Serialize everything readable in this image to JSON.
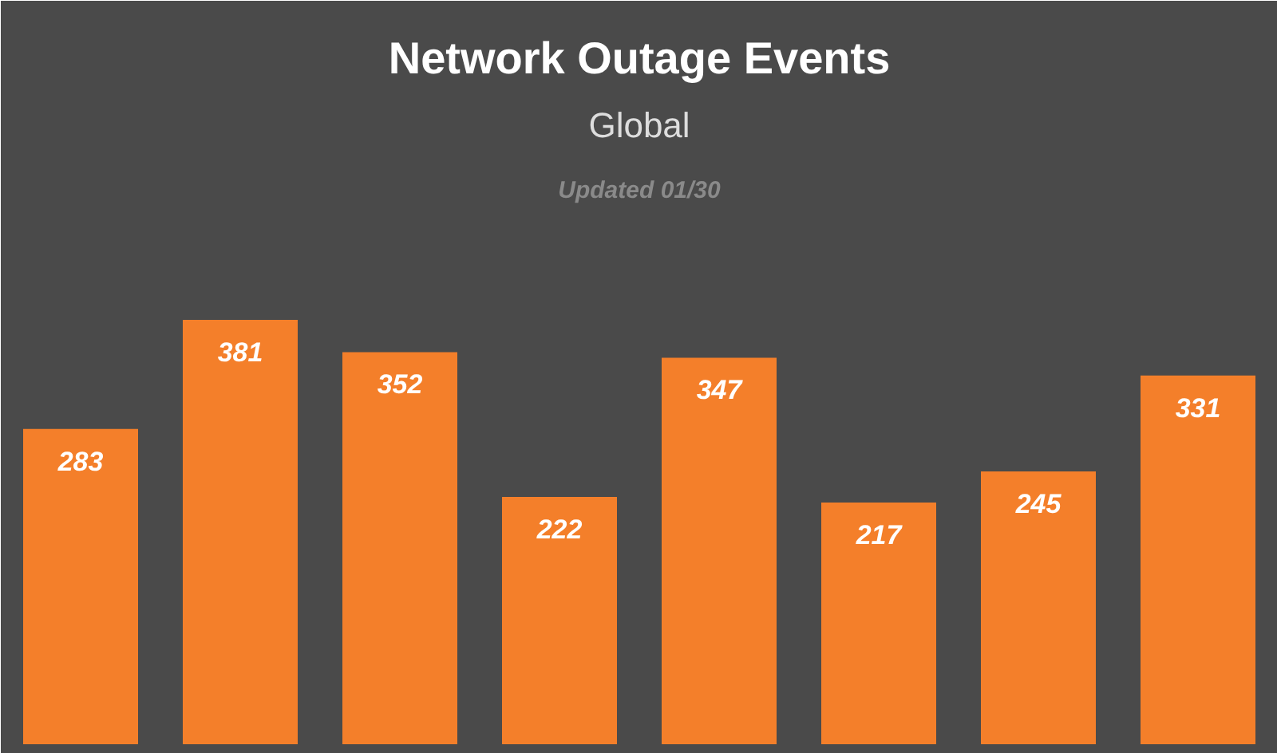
{
  "chart_data": {
    "type": "bar",
    "title": "Network Outage Events",
    "subtitle": "Global",
    "annotations": [
      "Updated 01/30"
    ],
    "categories": [
      null,
      null,
      null,
      null,
      null,
      null,
      null,
      null
    ],
    "values": [
      283,
      381,
      352,
      222,
      347,
      217,
      245,
      331
    ],
    "color": "#f47f2a",
    "data_labels": true
  }
}
